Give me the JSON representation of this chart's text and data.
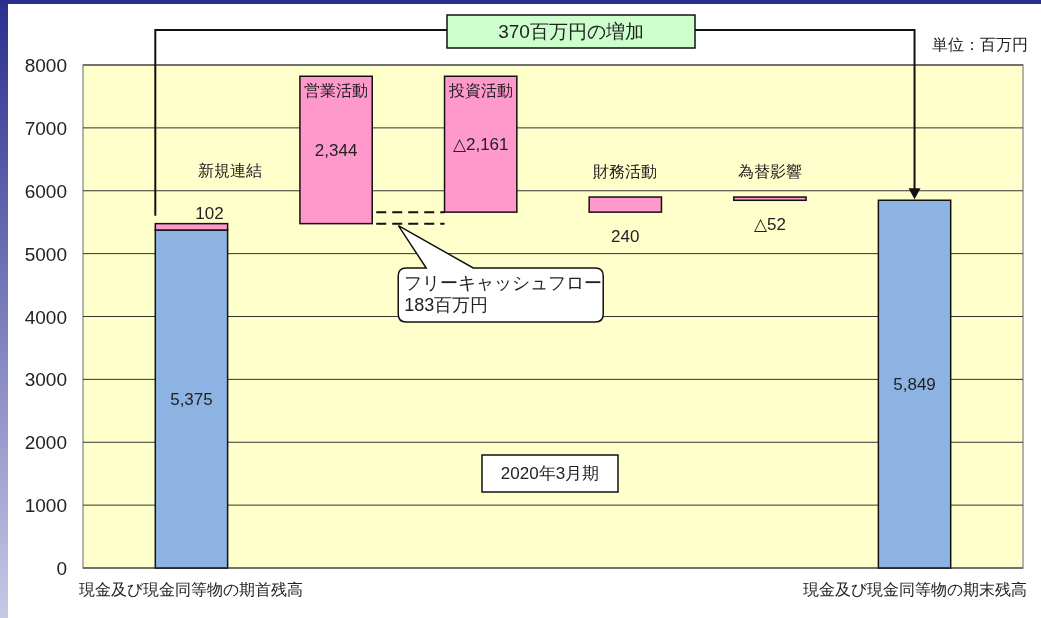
{
  "chart_data": {
    "type": "bar",
    "categories": [
      "現金及び現金同等物の期首残高",
      "営業活動",
      "投資活動",
      "財務活動",
      "為替影響",
      "現金及び現金同等物の期末残高"
    ],
    "series": [
      {
        "color": "#8db3e2",
        "values": [
          5375,
          null,
          null,
          null,
          null,
          5849
        ],
        "base": [
          0,
          null,
          null,
          null,
          null,
          0
        ],
        "value_labels": [
          "5,375",
          null,
          null,
          null,
          null,
          "5,849"
        ]
      },
      {
        "color": "#ff99cc",
        "values": [
          102,
          2344,
          -2161,
          240,
          -52,
          null
        ],
        "base": [
          5375,
          5477,
          7821,
          5660,
          5900,
          null
        ],
        "value_labels": [
          "102",
          "2,344",
          "△2,161",
          "240",
          "△52",
          null
        ]
      }
    ],
    "ylim": [
      0,
      8000
    ],
    "yticks": [
      0,
      1000,
      2000,
      3000,
      4000,
      5000,
      6000,
      7000,
      8000
    ],
    "grid": "y",
    "annotations": [
      "370百万円の増加",
      "単位：百万円",
      "2020年3月期",
      {
        "text": "新規連結",
        "x": "現金及び現金同等物の期首残高",
        "y": 5477
      },
      "フリーキャッシュフロー\n183百万円"
    ]
  }
}
